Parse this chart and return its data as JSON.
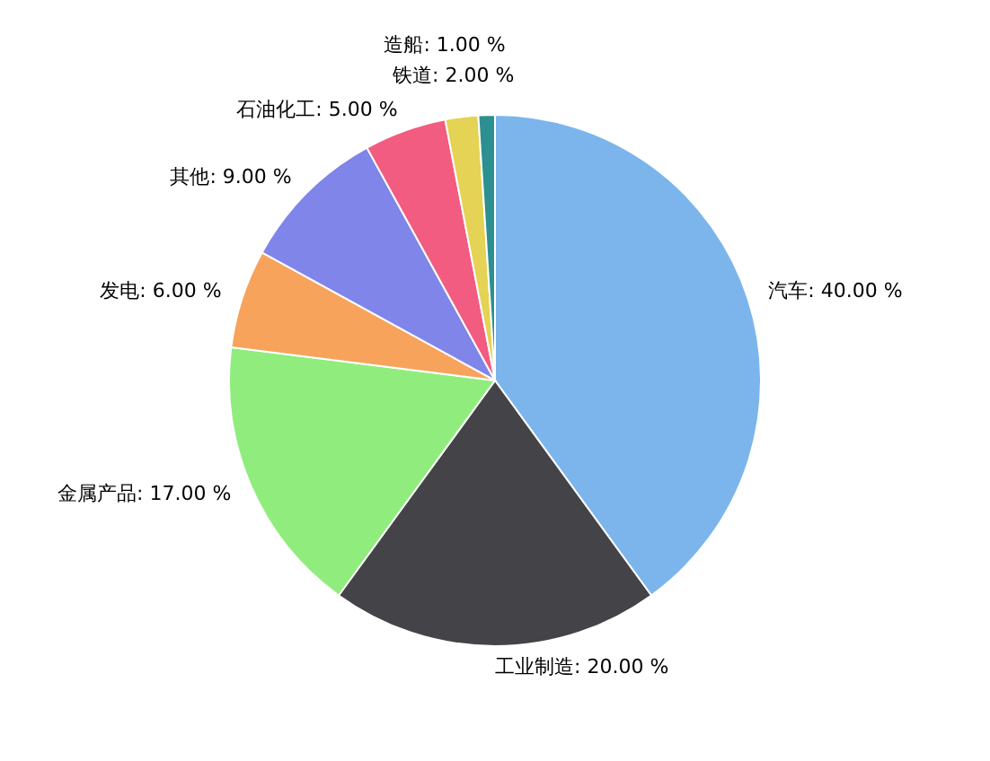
{
  "chart_data": {
    "type": "pie",
    "categories": [
      "汽车",
      "工业制造",
      "金属产品",
      "发电",
      "其他",
      "石油化工",
      "铁道",
      "造船"
    ],
    "values": [
      40,
      20,
      17,
      6,
      9,
      5,
      2,
      1
    ],
    "value_labels": [
      "40.00 %",
      "20.00 %",
      "17.00 %",
      "6.00 %",
      "9.00 %",
      "5.00 %",
      "2.00 %",
      "1.00 %"
    ],
    "colors": [
      "#7cb5ec",
      "#434348",
      "#90ed7d",
      "#f7a35c",
      "#8085e9",
      "#f15c80",
      "#e4d354",
      "#2b908f"
    ],
    "legend": false
  }
}
